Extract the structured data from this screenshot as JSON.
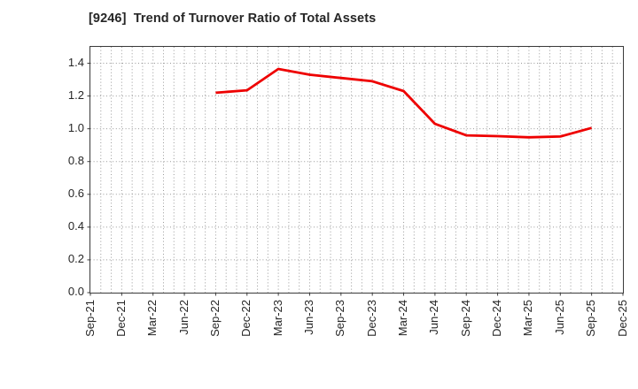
{
  "chart_data": {
    "type": "line",
    "title": "[9246]  Trend of Turnover Ratio of Total Assets",
    "categories": [
      "Sep-21",
      "Dec-21",
      "Mar-22",
      "Jun-22",
      "Sep-22",
      "Dec-22",
      "Mar-23",
      "Jun-23",
      "Sep-23",
      "Dec-23",
      "Mar-24",
      "Jun-24",
      "Sep-24",
      "Dec-24",
      "Mar-25",
      "Jun-25",
      "Sep-25",
      "Dec-25"
    ],
    "series": [
      {
        "name": "Turnover Ratio of Total Assets",
        "color": "#ee0000",
        "values": [
          null,
          null,
          null,
          null,
          1.22,
          1.235,
          1.365,
          1.33,
          1.31,
          1.29,
          1.23,
          1.03,
          0.96,
          0.955,
          0.948,
          0.953,
          1.005,
          null
        ]
      }
    ],
    "xlabel": "",
    "ylabel": "",
    "ylim": [
      0,
      1.5
    ],
    "yticks": [
      "0.0",
      "0.2",
      "0.4",
      "0.6",
      "0.8",
      "1.0",
      "1.2",
      "1.4"
    ],
    "minor_vertical_grid_per_interval": 3,
    "grid_style": "dotted",
    "legend": "none"
  },
  "style": {
    "line_color": "#ee0000",
    "grid_color": "#999999",
    "border_color": "#3a3a3a",
    "tick_text_color": "#262626",
    "title_color": "#262626",
    "background": "#ffffff"
  }
}
